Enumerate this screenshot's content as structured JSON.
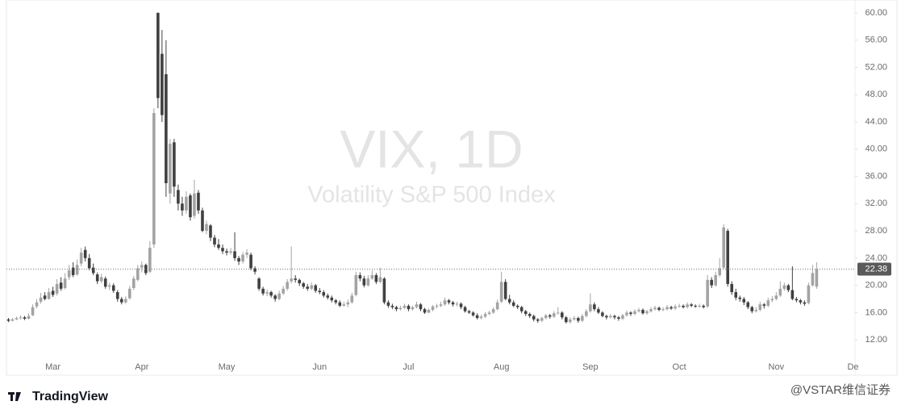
{
  "chart_data": {
    "type": "candlestick",
    "title": "VIX, 1D",
    "subtitle": "Volatility S&P 500 Index",
    "brand": "TradingView",
    "watermark": "@VSTAR维信证券",
    "up_color": "#a3a3a3",
    "down_color": "#404040",
    "ylim": [
      6.8,
      61.9
    ],
    "yticks": [
      {
        "value": 12,
        "label": "12.00"
      },
      {
        "value": 16,
        "label": "16.00"
      },
      {
        "value": 20,
        "label": "20.00"
      },
      {
        "value": 24,
        "label": "24.00"
      },
      {
        "value": 28,
        "label": "28.00"
      },
      {
        "value": 32,
        "label": "32.00"
      },
      {
        "value": 36,
        "label": "36.00"
      },
      {
        "value": 40,
        "label": "40.00"
      },
      {
        "value": 44,
        "label": "44.00"
      },
      {
        "value": 48,
        "label": "48.00"
      },
      {
        "value": 52,
        "label": "52.00"
      },
      {
        "value": 56,
        "label": "56.00"
      },
      {
        "value": 60,
        "label": "60.00"
      }
    ],
    "categories": [
      null,
      null,
      null,
      null,
      null,
      null,
      null,
      null,
      null,
      null,
      null,
      "Mar",
      null,
      null,
      null,
      null,
      null,
      null,
      null,
      null,
      null,
      null,
      null,
      null,
      null,
      null,
      null,
      null,
      null,
      null,
      null,
      null,
      null,
      "Apr",
      null,
      null,
      null,
      null,
      null,
      null,
      null,
      null,
      null,
      null,
      null,
      null,
      null,
      null,
      null,
      null,
      null,
      null,
      null,
      null,
      "May",
      null,
      null,
      null,
      null,
      null,
      null,
      null,
      null,
      null,
      null,
      null,
      null,
      null,
      null,
      null,
      null,
      null,
      null,
      null,
      null,
      null,
      null,
      "Jun",
      null,
      null,
      null,
      null,
      null,
      null,
      null,
      null,
      null,
      null,
      null,
      null,
      null,
      null,
      null,
      null,
      null,
      null,
      null,
      null,
      null,
      "Jul",
      null,
      null,
      null,
      null,
      null,
      null,
      null,
      null,
      null,
      null,
      null,
      null,
      null,
      null,
      null,
      null,
      null,
      null,
      null,
      null,
      null,
      null,
      "Aug",
      null,
      null,
      null,
      null,
      null,
      null,
      null,
      null,
      null,
      null,
      null,
      null,
      null,
      null,
      null,
      null,
      null,
      null,
      null,
      null,
      null,
      "Sep",
      null,
      null,
      null,
      null,
      null,
      null,
      null,
      null,
      null,
      null,
      null,
      null,
      null,
      null,
      null,
      null,
      null,
      null,
      null,
      null,
      null,
      "Oct",
      null,
      null,
      null,
      null,
      null,
      null,
      null,
      null,
      null,
      null,
      null,
      null,
      null,
      null,
      null,
      null,
      null,
      null,
      null,
      null,
      null,
      null,
      null,
      "Nov",
      null,
      null,
      null,
      null,
      null,
      null,
      null,
      null,
      null,
      null,
      null,
      null,
      null,
      null,
      null,
      null,
      null,
      null,
      "De"
    ],
    "open": [
      15.0,
      14.8,
      15.0,
      15.2,
      15.3,
      15.1,
      15.6,
      16.9,
      17.6,
      18.5,
      18.0,
      19.2,
      18.8,
      20.4,
      19.6,
      21.2,
      22.6,
      21.6,
      23.2,
      25.2,
      24.0,
      22.6,
      21.6,
      20.6,
      21.0,
      19.8,
      20.0,
      19.0,
      18.0,
      17.5,
      18.1,
      19.6,
      20.8,
      22.6,
      23.0,
      22.0,
      26.0,
      60.0,
      54.0,
      51.0,
      33.5,
      41.0,
      34.0,
      32.0,
      31.0,
      33.2,
      30.2,
      33.6,
      31.0,
      28.0,
      28.8,
      27.0,
      26.0,
      25.5,
      25.0,
      24.8,
      25.0,
      24.0,
      23.5,
      24.5,
      24.5,
      22.5,
      21.0,
      19.5,
      18.8,
      19.0,
      18.5,
      18.0,
      18.8,
      19.5,
      20.6,
      21.0,
      20.8,
      20.3,
      19.8,
      19.5,
      20.0,
      19.2,
      19.0,
      18.5,
      18.2,
      17.8,
      17.5,
      17.0,
      17.2,
      17.5,
      18.6,
      21.5,
      21.0,
      20.0,
      21.0,
      21.5,
      20.5,
      21.0,
      17.5,
      17.0,
      16.8,
      16.5,
      16.7,
      17.0,
      16.5,
      16.8,
      17.2,
      16.5,
      16.0,
      16.4,
      16.9,
      17.0,
      17.2,
      17.8,
      17.5,
      17.2,
      17.3,
      16.8,
      16.2,
      16.0,
      15.6,
      15.2,
      15.4,
      15.8,
      16.0,
      16.5,
      17.6,
      20.5,
      18.0,
      17.5,
      17.0,
      16.8,
      16.2,
      15.8,
      15.5,
      15.0,
      14.8,
      15.2,
      15.6,
      15.4,
      15.9,
      16.0,
      15.3,
      14.6,
      15.0,
      15.2,
      14.8,
      15.5,
      16.2,
      17.2,
      16.5,
      16.0,
      15.5,
      15.3,
      15.5,
      15.3,
      15.1,
      15.6,
      16.0,
      15.8,
      16.2,
      16.4,
      15.9,
      16.2,
      16.5,
      16.7,
      16.4,
      16.5,
      16.8,
      16.6,
      16.9,
      17.0,
      16.8,
      17.2,
      17.0,
      16.9,
      17.0,
      16.9,
      20.8,
      20.0,
      21.5,
      22.6,
      28.0,
      20.2,
      19.0,
      18.2,
      18.0,
      17.5,
      16.8,
      16.2,
      16.4,
      17.2,
      17.0,
      17.8,
      18.0,
      18.5,
      19.5,
      20.0,
      19.3,
      18.0,
      17.8,
      17.5,
      17.4,
      20.0,
      19.8,
      null,
      null,
      null,
      null,
      null,
      null,
      null,
      null,
      null
    ],
    "high": [
      15.2,
      15.2,
      15.4,
      15.6,
      15.5,
      15.9,
      17.2,
      18.0,
      18.9,
      19.0,
      19.6,
      19.8,
      20.9,
      21.2,
      21.8,
      23.0,
      23.4,
      23.8,
      25.5,
      25.7,
      24.6,
      23.2,
      21.9,
      21.7,
      21.3,
      20.4,
      20.3,
      19.3,
      18.3,
      18.4,
      19.9,
      21.4,
      23.0,
      23.5,
      23.2,
      26.5,
      46.0,
      60.1,
      57.5,
      56.0,
      41.5,
      41.5,
      34.8,
      33.0,
      33.8,
      33.5,
      35.5,
      34.0,
      31.4,
      29.5,
      29.0,
      27.4,
      26.8,
      26.0,
      25.4,
      25.5,
      27.8,
      24.3,
      24.9,
      25.3,
      24.8,
      22.8,
      21.2,
      19.8,
      19.4,
      19.2,
      18.7,
      19.2,
      19.9,
      20.9,
      25.7,
      21.5,
      21.0,
      20.5,
      20.2,
      20.4,
      20.2,
      19.6,
      19.3,
      18.8,
      18.5,
      18.0,
      17.8,
      17.6,
      17.9,
      18.9,
      22.0,
      21.9,
      21.4,
      21.5,
      22.2,
      21.8,
      22.6,
      21.2,
      17.8,
      17.3,
      17.0,
      17.0,
      17.3,
      17.2,
      17.0,
      17.6,
      17.4,
      16.7,
      16.6,
      17.1,
      17.3,
      17.6,
      18.2,
      18.0,
      17.7,
      17.6,
      17.5,
      17.0,
      16.4,
      16.2,
      15.9,
      15.7,
      16.1,
      16.3,
      16.8,
      17.9,
      22.0,
      20.9,
      18.6,
      17.8,
      17.2,
      17.0,
      16.4,
      16.0,
      15.7,
      15.2,
      15.4,
      15.8,
      15.8,
      16.2,
      16.8,
      16.2,
      15.5,
      15.3,
      15.5,
      15.4,
      15.8,
      16.5,
      18.8,
      17.5,
      16.8,
      16.2,
      15.7,
      15.8,
      15.7,
      15.5,
      15.8,
      16.3,
      16.2,
      16.5,
      16.7,
      16.6,
      16.4,
      16.8,
      17.0,
      16.9,
      16.8,
      17.1,
      17.0,
      17.2,
      17.3,
      17.2,
      17.5,
      17.4,
      17.2,
      17.3,
      17.2,
      21.5,
      21.2,
      22.0,
      24.0,
      29.0,
      28.3,
      20.6,
      19.5,
      18.5,
      18.3,
      17.7,
      17.0,
      16.8,
      17.6,
      17.4,
      18.2,
      18.4,
      19.0,
      20.6,
      20.4,
      20.2,
      22.8,
      18.3,
      18.0,
      17.8,
      20.4,
      23.0,
      23.4,
      null,
      null,
      null,
      null,
      null,
      null,
      null,
      null,
      null
    ],
    "low": [
      14.6,
      14.7,
      14.9,
      15.0,
      14.9,
      15.0,
      15.5,
      16.6,
      17.3,
      17.8,
      17.9,
      18.3,
      18.5,
      19.2,
      19.4,
      20.8,
      21.2,
      21.4,
      22.8,
      23.5,
      22.2,
      21.5,
      20.2,
      20.3,
      19.5,
      19.3,
      18.9,
      17.6,
      17.2,
      17.3,
      17.9,
      19.3,
      20.6,
      21.9,
      21.5,
      21.8,
      25.5,
      46.0,
      44.0,
      33.0,
      32.0,
      33.0,
      31.0,
      30.2,
      30.5,
      29.5,
      29.8,
      30.5,
      27.8,
      27.5,
      26.5,
      25.6,
      25.2,
      24.6,
      24.4,
      24.5,
      23.6,
      23.0,
      23.2,
      24.0,
      22.2,
      21.6,
      19.2,
      18.5,
      18.4,
      18.2,
      17.6,
      17.8,
      18.6,
      19.2,
      20.3,
      20.4,
      19.9,
      19.5,
      19.2,
      19.3,
      18.9,
      18.7,
      18.2,
      17.9,
      17.5,
      17.2,
      16.8,
      16.9,
      16.8,
      17.3,
      18.4,
      20.6,
      19.7,
      19.8,
      20.8,
      20.2,
      20.3,
      17.2,
      16.7,
      16.5,
      16.2,
      16.3,
      16.5,
      16.2,
      16.3,
      16.6,
      16.2,
      15.8,
      15.9,
      16.2,
      16.6,
      16.8,
      17.0,
      17.2,
      16.9,
      16.9,
      16.5,
      16.0,
      15.8,
      15.4,
      15.0,
      15.0,
      15.2,
      15.6,
      15.8,
      16.3,
      17.4,
      17.8,
      17.2,
      16.8,
      16.5,
      15.9,
      15.5,
      15.2,
      14.7,
      14.5,
      14.6,
      15.0,
      15.1,
      15.2,
      15.7,
      15.0,
      14.4,
      14.4,
      14.8,
      14.5,
      14.6,
      15.3,
      16.0,
      16.2,
      15.8,
      15.3,
      15.0,
      15.1,
      15.0,
      14.8,
      14.9,
      15.4,
      15.5,
      15.6,
      16.0,
      15.7,
      15.7,
      16.0,
      16.3,
      16.2,
      16.2,
      16.3,
      16.4,
      16.4,
      16.7,
      16.6,
      16.6,
      16.8,
      16.7,
      16.7,
      16.6,
      16.7,
      19.6,
      19.8,
      21.2,
      22.4,
      19.8,
      18.6,
      17.8,
      17.6,
      17.1,
      16.5,
      15.9,
      16.0,
      16.2,
      16.6,
      16.8,
      17.5,
      17.8,
      18.3,
      19.2,
      19.0,
      17.8,
      17.5,
      17.2,
      17.0,
      17.2,
      19.8,
      19.5,
      null,
      null,
      null,
      null,
      null,
      null,
      null,
      null,
      null
    ],
    "close": [
      14.8,
      15.0,
      15.2,
      15.3,
      15.1,
      15.5,
      16.8,
      17.5,
      18.2,
      18.0,
      19.0,
      18.6,
      20.2,
      19.5,
      21.0,
      22.2,
      21.5,
      23.0,
      24.8,
      24.0,
      22.5,
      21.8,
      20.6,
      21.2,
      19.8,
      20.0,
      19.2,
      18.0,
      17.5,
      18.0,
      19.5,
      21.0,
      22.5,
      23.0,
      21.8,
      25.5,
      45.3,
      47.5,
      45.0,
      35.0,
      40.8,
      34.5,
      32.0,
      31.0,
      33.0,
      30.0,
      33.5,
      31.0,
      28.0,
      29.0,
      27.0,
      26.0,
      25.5,
      25.0,
      24.8,
      25.0,
      24.0,
      23.5,
      24.5,
      24.8,
      22.5,
      22.0,
      19.5,
      18.8,
      19.0,
      18.5,
      18.0,
      18.8,
      19.5,
      20.5,
      21.0,
      20.8,
      20.3,
      19.8,
      19.5,
      20.0,
      19.2,
      19.0,
      18.5,
      18.2,
      17.8,
      17.5,
      17.0,
      17.2,
      17.5,
      18.5,
      21.5,
      21.0,
      20.0,
      21.0,
      21.5,
      20.5,
      21.2,
      17.5,
      17.0,
      16.8,
      16.5,
      16.7,
      17.0,
      16.5,
      16.8,
      17.2,
      16.5,
      16.0,
      16.4,
      16.9,
      17.0,
      17.2,
      17.8,
      17.5,
      17.2,
      17.3,
      16.8,
      16.2,
      16.0,
      15.6,
      15.2,
      15.4,
      15.8,
      16.0,
      16.5,
      17.5,
      20.5,
      18.0,
      17.5,
      17.0,
      16.8,
      16.2,
      15.8,
      15.5,
      15.0,
      14.8,
      15.2,
      15.6,
      15.4,
      15.9,
      16.0,
      15.3,
      14.6,
      15.0,
      15.2,
      14.8,
      15.5,
      16.2,
      17.2,
      16.5,
      16.0,
      15.5,
      15.3,
      15.5,
      15.3,
      15.1,
      15.6,
      16.0,
      15.8,
      16.2,
      16.4,
      15.9,
      16.2,
      16.5,
      16.7,
      16.4,
      16.5,
      16.8,
      16.6,
      16.9,
      17.0,
      16.8,
      17.2,
      17.0,
      16.9,
      17.0,
      16.8,
      20.8,
      20.0,
      21.5,
      22.5,
      28.5,
      20.2,
      19.0,
      18.2,
      18.0,
      17.5,
      16.8,
      16.2,
      16.4,
      17.2,
      17.0,
      17.8,
      18.0,
      18.5,
      19.5,
      20.0,
      19.3,
      18.0,
      17.8,
      17.5,
      17.3,
      20.0,
      21.8,
      22.38,
      null,
      null,
      null,
      null,
      null,
      null,
      null,
      null,
      null
    ]
  }
}
